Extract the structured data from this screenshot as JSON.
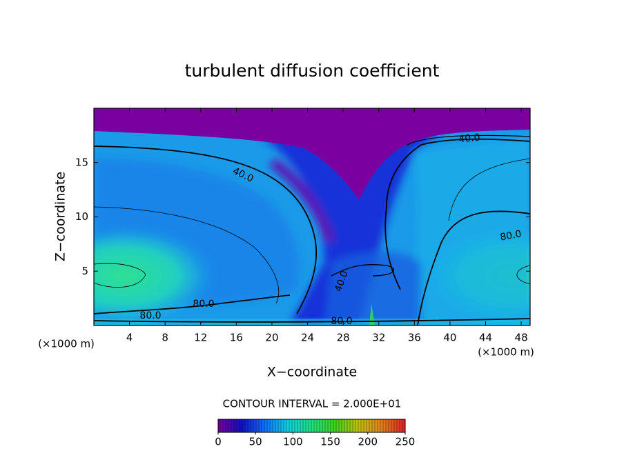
{
  "chart_data": {
    "type": "contour",
    "title": "turbulent diffusion coefficient",
    "x_label": "X−coordinate",
    "y_label": "Z−coordinate",
    "x_unit": "(×1000 m)",
    "y_unit": "(×1000 m)",
    "xlim": [
      0,
      49
    ],
    "xticks": [
      4,
      8,
      12,
      16,
      20,
      24,
      28,
      32,
      36,
      40,
      44,
      48
    ],
    "ylim": [
      0,
      20
    ],
    "yticks": [
      5,
      10,
      15
    ],
    "contour_interval_text": "CONTOUR INTERVAL = 2.000E+01",
    "contour_labels": [
      "40.0",
      "40.0",
      "40.0",
      "80.0",
      "80.0",
      "80.0",
      "80.0"
    ],
    "colorbar": {
      "lim": [
        0,
        250
      ],
      "ticks": [
        0,
        50,
        100,
        150,
        200,
        250
      ],
      "colors": [
        "#7a00a0",
        "#1010c0",
        "#1070ff",
        "#10d0e0",
        "#20e080",
        "#40d020",
        "#c0c010",
        "#e08020",
        "#e02020"
      ]
    }
  }
}
